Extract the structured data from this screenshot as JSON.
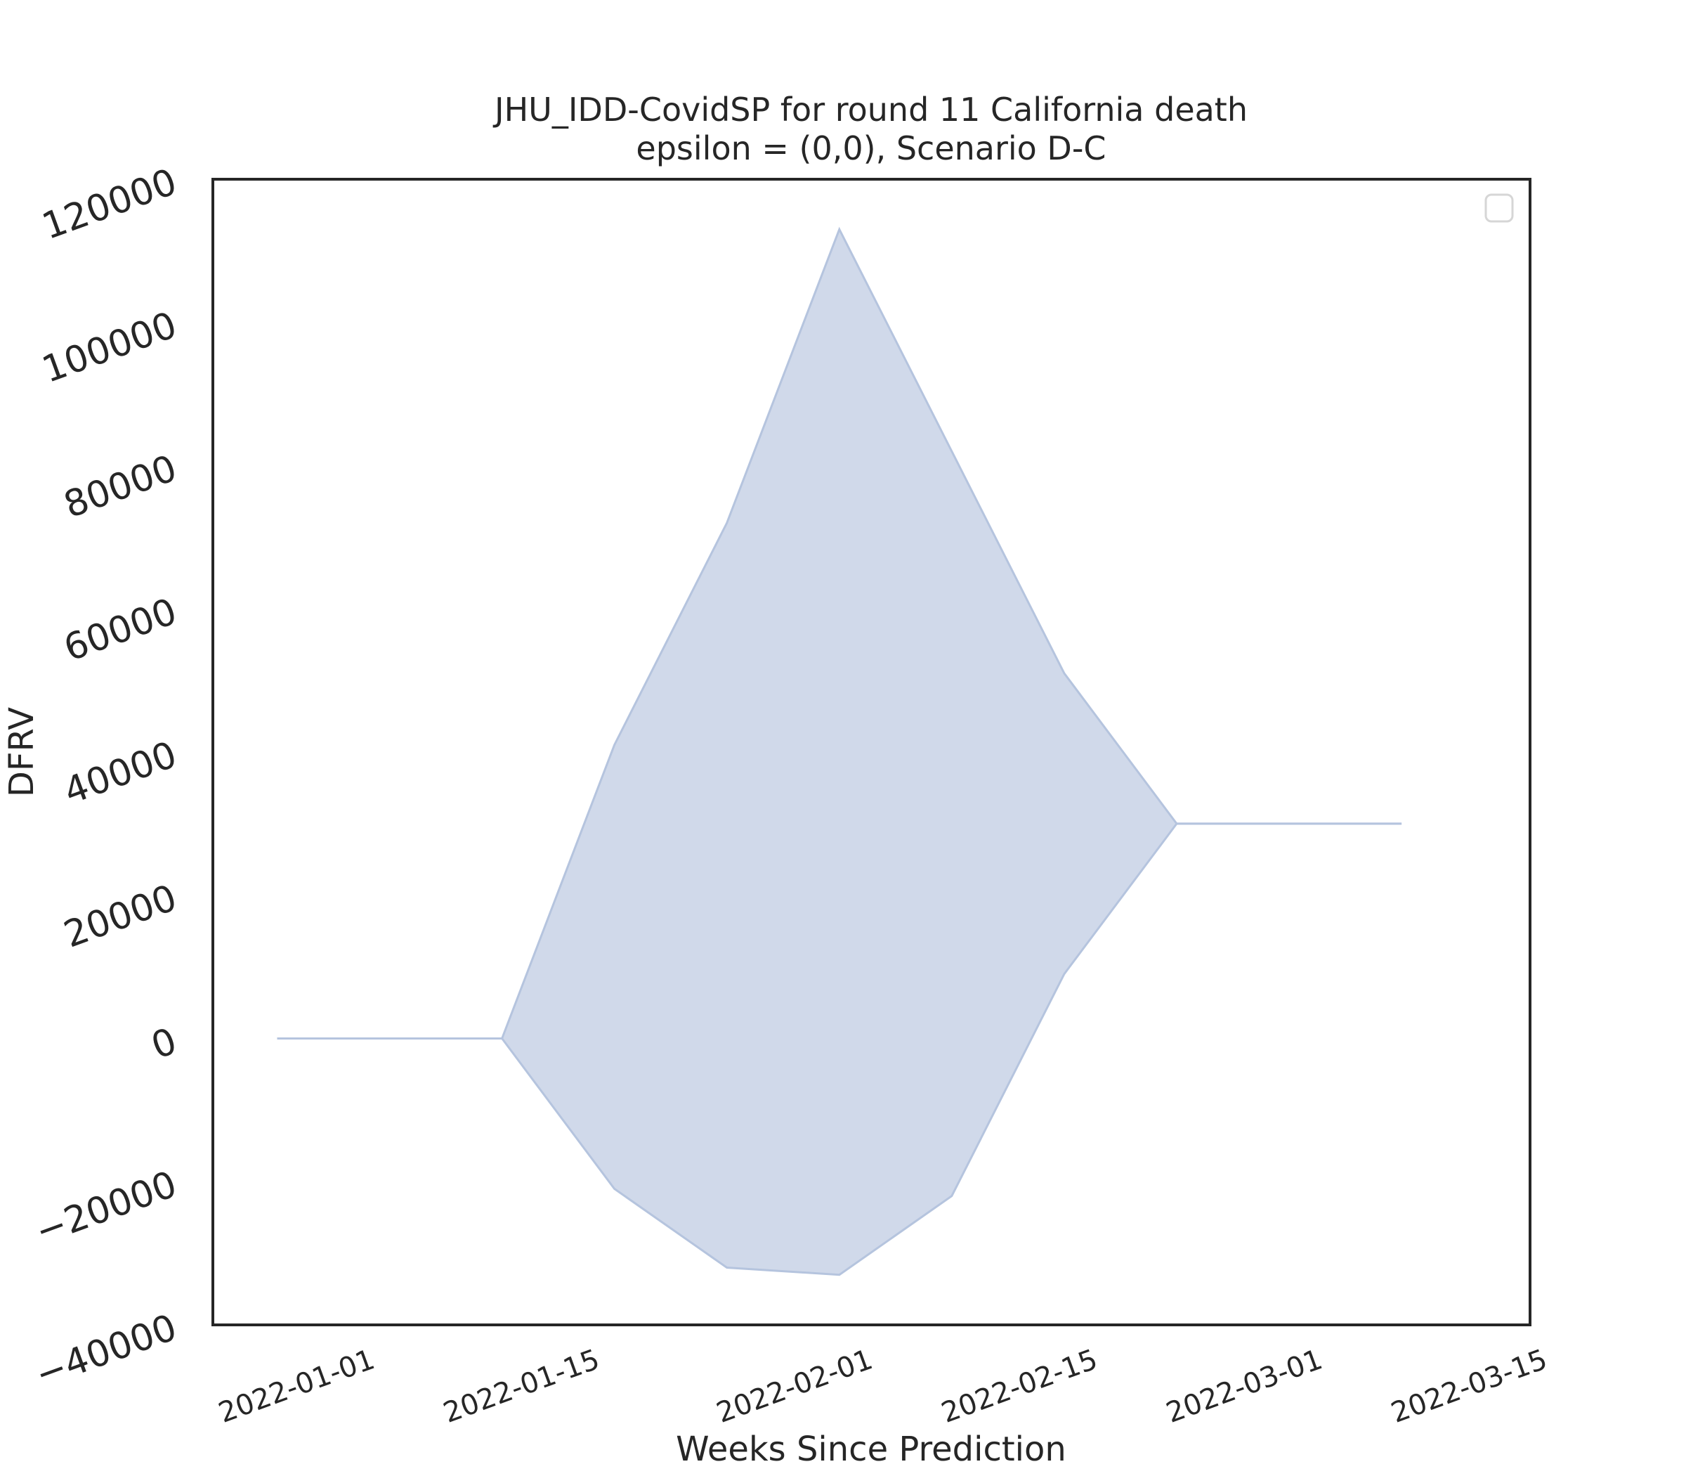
{
  "chart_data": {
    "type": "area",
    "title": "JHU_IDD-CovidSP for round 11 California death",
    "subtitle": "epsilon = (0,0), Scenario D-C",
    "xlabel": "Weeks Since Prediction",
    "ylabel": "DFRV",
    "ylim": [
      -40000,
      120000
    ],
    "xlim": [
      "2021-12-24",
      "2022-03-16"
    ],
    "yticks": [
      -40000,
      -20000,
      0,
      20000,
      40000,
      60000,
      80000,
      100000,
      120000
    ],
    "ytick_labels": [
      "−40000",
      "−20000",
      "0",
      "20000",
      "40000",
      "60000",
      "80000",
      "100000",
      "120000"
    ],
    "xticks": [
      "2022-01-01",
      "2022-01-15",
      "2022-02-01",
      "2022-02-15",
      "2022-03-01",
      "2022-03-15"
    ],
    "xtick_labels": [
      "2022-01-01",
      "2022-01-15",
      "2022-02-01",
      "2022-02-15",
      "2022-03-01",
      "2022-03-15"
    ],
    "grid": false,
    "legend": {
      "placement": "top-right",
      "entries": []
    },
    "fill_color": "#d0d9ea",
    "line_color": "#b5c4de",
    "x": [
      "2021-12-28",
      "2022-01-04",
      "2022-01-11",
      "2022-01-18",
      "2022-01-25",
      "2022-02-01",
      "2022-02-08",
      "2022-02-15",
      "2022-02-22",
      "2022-03-01",
      "2022-03-08"
    ],
    "lower": [
      0,
      0,
      0,
      -21000,
      -32000,
      -33000,
      -22000,
      9000,
      30000,
      30000,
      30000
    ],
    "upper": [
      0,
      0,
      0,
      41000,
      72000,
      113000,
      82000,
      51000,
      30000,
      30000,
      30000
    ]
  }
}
